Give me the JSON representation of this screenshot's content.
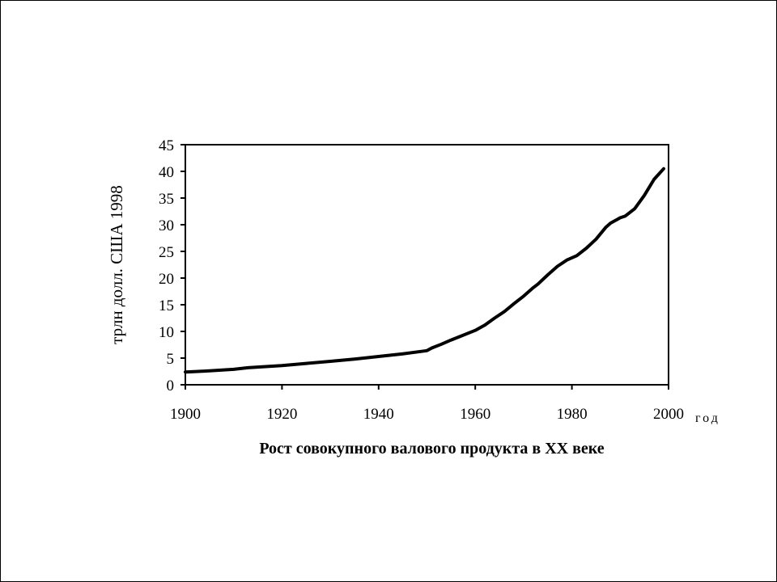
{
  "chart_data": {
    "type": "line",
    "title": "Рост совокупного валового продукта в XX веке",
    "xlabel": "год",
    "ylabel": "трлн долл. США 1998",
    "xlim": [
      1900,
      2000
    ],
    "ylim": [
      0,
      45
    ],
    "xticks": [
      "1900",
      "1920",
      "1940",
      "1960",
      "1980",
      "2000"
    ],
    "yticks": [
      "0",
      "5",
      "10",
      "15",
      "20",
      "25",
      "30",
      "35",
      "40",
      "45"
    ],
    "grid": false,
    "legend": "none",
    "line_color": "#000000",
    "series": [
      {
        "x": [
          1900,
          1905,
          1910,
          1913,
          1920,
          1925,
          1930,
          1935,
          1940,
          1945,
          1950,
          1951,
          1953,
          1955,
          1957,
          1960,
          1962,
          1964,
          1966,
          1968,
          1970,
          1972,
          1973,
          1975,
          1977,
          1979,
          1981,
          1983,
          1985,
          1987,
          1988,
          1990,
          1991,
          1993,
          1995,
          1997,
          1999
        ],
        "y": [
          2.4,
          2.6,
          2.9,
          3.2,
          3.6,
          4.0,
          4.4,
          4.8,
          5.3,
          5.8,
          6.4,
          6.9,
          7.6,
          8.4,
          9.1,
          10.2,
          11.2,
          12.5,
          13.7,
          15.2,
          16.6,
          18.2,
          18.9,
          20.6,
          22.2,
          23.4,
          24.2,
          25.6,
          27.3,
          29.5,
          30.3,
          31.3,
          31.6,
          33.0,
          35.5,
          38.5,
          40.5
        ]
      }
    ]
  }
}
